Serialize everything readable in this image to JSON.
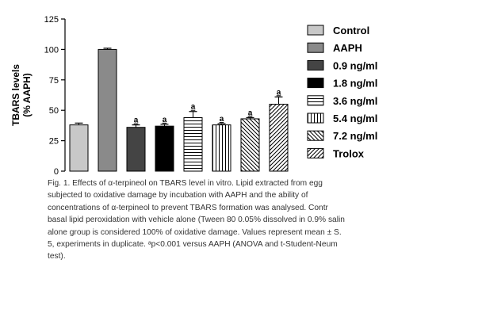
{
  "chart_data": {
    "type": "bar",
    "ylabel_lines": [
      "TBARS levels",
      "(% AAPH)"
    ],
    "ylim": [
      0,
      125
    ],
    "yticks": [
      0,
      25,
      50,
      75,
      100,
      125
    ],
    "legend_position": "right",
    "categories": [
      "Control",
      "AAPH",
      "0.9 ng/ml",
      "1.8 ng/ml",
      "3.6 ng/ml",
      "5.4 ng/ml",
      "7.2 ng/ml",
      "Trolox"
    ],
    "values": [
      38,
      100,
      36,
      37,
      44,
      38,
      43,
      55
    ],
    "errors": [
      1.5,
      1.0,
      2.0,
      1.5,
      5.0,
      1.0,
      1.0,
      6.0
    ],
    "significance": [
      "",
      "",
      "a",
      "a",
      "a",
      "a",
      "a",
      "a"
    ],
    "fills": [
      {
        "type": "solid",
        "color": "#c8c8c8"
      },
      {
        "type": "solid",
        "color": "#8a8a8a"
      },
      {
        "type": "solid",
        "color": "#444444"
      },
      {
        "type": "solid",
        "color": "#000000"
      },
      {
        "type": "hlines"
      },
      {
        "type": "vlines"
      },
      {
        "type": "diag-back"
      },
      {
        "type": "diag-fwd"
      }
    ]
  },
  "caption_lines": [
    "Fig. 1. Effects of α-terpineol on TBARS level in vitro. Lipid extracted from egg",
    "subjected to oxidative damage by incubation with AAPH and the ability of",
    "concentrations of α-terpineol to prevent TBARS formation was analysed. Contr",
    "basal lipid peroxidation with vehicle alone (Tween 80 0.05% dissolved in 0.9% salin",
    "alone group is considered 100% of oxidative damage. Values represent mean ± S.",
    "5, experiments in duplicate. ᵃp<0.001 versus AAPH (ANOVA and t-Student-Neum",
    "test)."
  ]
}
